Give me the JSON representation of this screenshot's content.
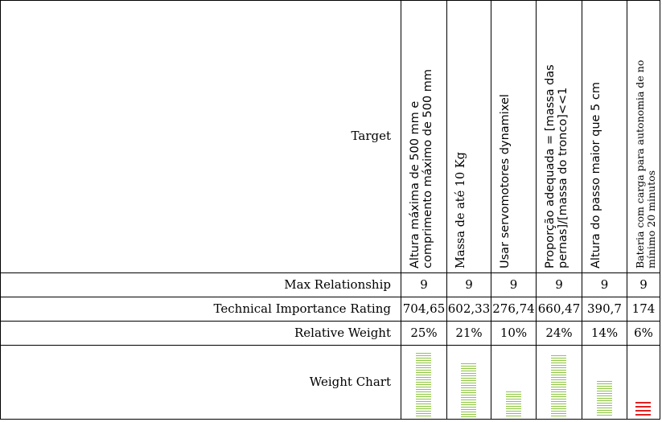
{
  "row_labels": {
    "target": "Target",
    "max_relationship": "Max Relationship",
    "technical_importance": "Technical Importance Rating",
    "relative_weight": "Relative Weight",
    "weight_chart": "Weight Chart"
  },
  "columns": [
    {
      "lines": [
        "Altura máxima de 500 mm e",
        "comprimento máximo de 500 mm"
      ],
      "max_relationship": "9",
      "technical_importance": "704,65",
      "relative_weight": "25%",
      "weight_fraction": 0.25,
      "bar_color": "#8dc63f"
    },
    {
      "lines": [
        "Massa de até 10 Kg"
      ],
      "max_relationship": "9",
      "technical_importance": "602,33",
      "relative_weight": "21%",
      "weight_fraction": 0.21,
      "bar_color": "#8dc63f"
    },
    {
      "lines": [
        "Usar servomotores dynamixel"
      ],
      "max_relationship": "9",
      "technical_importance": "276,74",
      "relative_weight": "10%",
      "weight_fraction": 0.1,
      "bar_color": "#8dc63f"
    },
    {
      "lines": [
        "Proporção adequada = [massa das",
        "pernas]/[massa do tronco]<<1"
      ],
      "max_relationship": "9",
      "technical_importance": "660,47",
      "relative_weight": "24%",
      "weight_fraction": 0.24,
      "bar_color": "#8dc63f"
    },
    {
      "lines": [
        "Altura do passo maior que 5 cm"
      ],
      "max_relationship": "9",
      "technical_importance": "390,7",
      "relative_weight": "14%",
      "weight_fraction": 0.14,
      "bar_color": "#8dc63f"
    },
    {
      "lines": [
        "Bateria com carga para autonomia de no",
        "mínimo 20 minutos"
      ],
      "max_relationship": "9",
      "technical_importance": "174",
      "relative_weight": "6%",
      "weight_fraction": 0.06,
      "bar_color": "#e02020"
    }
  ]
}
